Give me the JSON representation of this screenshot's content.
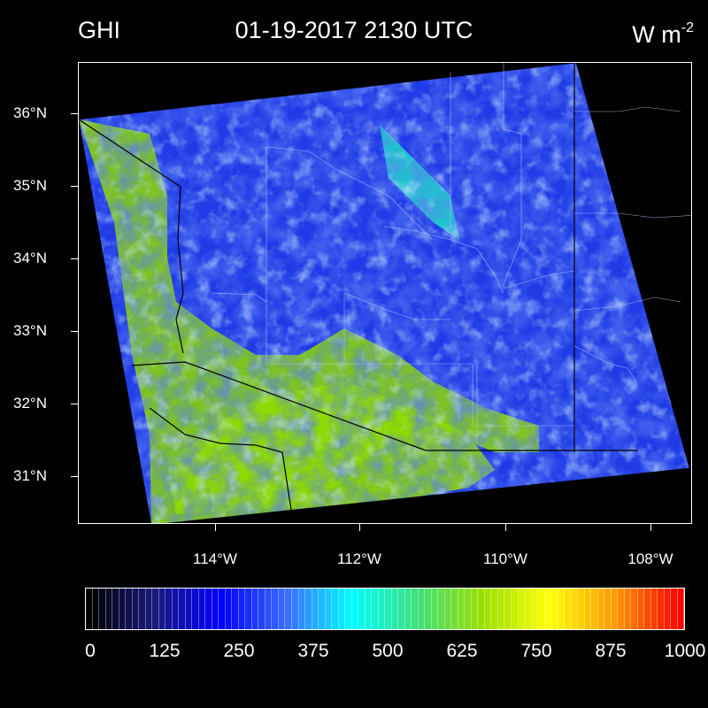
{
  "header": {
    "variable": "GHI",
    "datetime": "01-19-2017 2130 UTC",
    "units_base": "W m",
    "units_exp": "-2"
  },
  "map": {
    "lat_labels": [
      "36°N",
      "35°N",
      "34°N",
      "33°N",
      "32°N",
      "31°N"
    ],
    "lon_labels": [
      "114°W",
      "112°W",
      "110°W",
      "108°W"
    ]
  },
  "colorbar": {
    "labels": [
      "0",
      "125",
      "250",
      "375",
      "500",
      "625",
      "750",
      "875",
      "1000"
    ],
    "min": 0,
    "max": 1100,
    "colors": [
      "#000000",
      "#1a1a80",
      "#0000ff",
      "#3a6cff",
      "#00ffff",
      "#3fe07a",
      "#9be000",
      "#ffff00",
      "#ff9900",
      "#ff0000"
    ]
  }
}
